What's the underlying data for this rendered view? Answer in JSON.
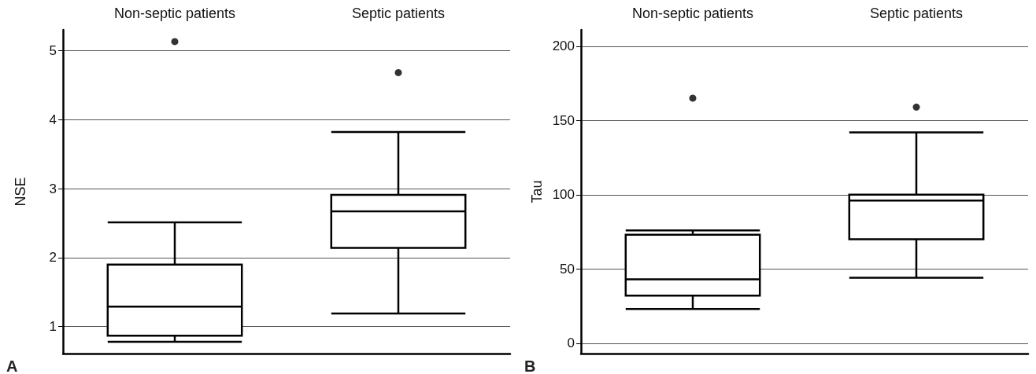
{
  "chart_data": [
    {
      "type": "box",
      "categories": [
        "Non-septic patients",
        "Septic patients"
      ],
      "ylabel": "NSE",
      "ylim": [
        0.61,
        5.3
      ],
      "yticks": [
        1,
        2,
        3,
        4,
        5
      ],
      "grid": "y",
      "color": "#000000",
      "annotations": [
        "A"
      ],
      "boxes": [
        {
          "low": 0.78,
          "q1": 0.87,
          "median": 1.29,
          "q3": 1.9,
          "high": 2.51,
          "outliers": [
            5.13
          ]
        },
        {
          "low": 1.19,
          "q1": 2.14,
          "median": 2.67,
          "q3": 2.91,
          "high": 3.82,
          "outliers": [
            4.68
          ]
        }
      ]
    },
    {
      "type": "box",
      "categories": [
        "Non-septic patients",
        "Septic patients"
      ],
      "ylabel": "Tau",
      "ylim": [
        -7,
        211
      ],
      "yticks": [
        0,
        50,
        100,
        150,
        200
      ],
      "grid": "y",
      "color": "#000000",
      "annotations": [
        "B"
      ],
      "boxes": [
        {
          "low": 23,
          "q1": 32,
          "median": 43,
          "q3": 73,
          "high": 76,
          "outliers": [
            165
          ]
        },
        {
          "low": 44,
          "q1": 70,
          "median": 96,
          "q3": 100,
          "high": 142,
          "outliers": [
            159
          ]
        }
      ]
    }
  ]
}
